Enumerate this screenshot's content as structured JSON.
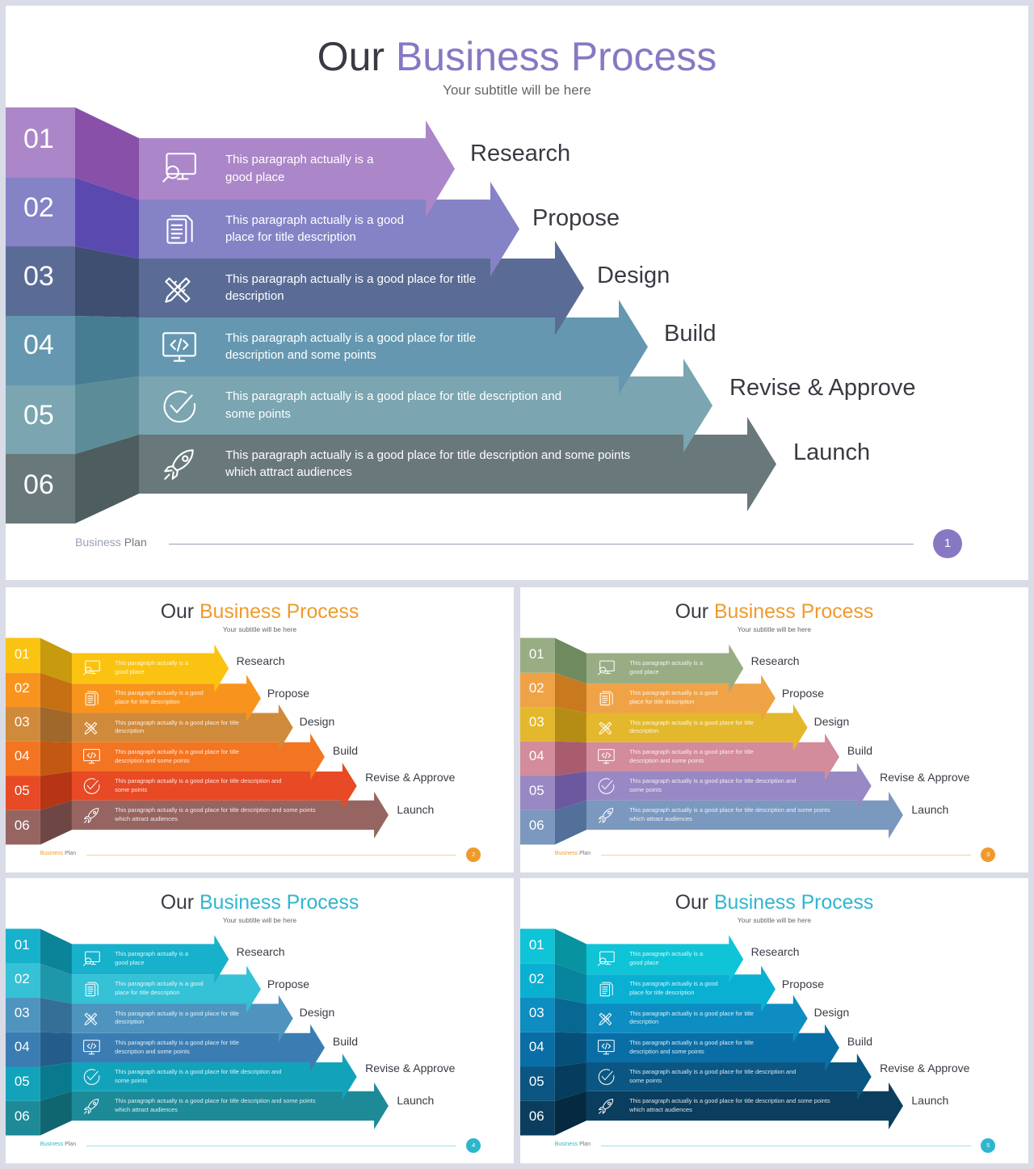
{
  "slides": [
    {
      "title_a": "Our ",
      "title_b": "Business Process",
      "subtitle": "Your subtitle will be here",
      "accent": "#8878c3",
      "footer_a": "Business ",
      "footer_b": "Plan",
      "page": "1",
      "colors": [
        "#ab86c8",
        "#8582c6",
        "#5a6c96",
        "#6598b0",
        "#7aa5b1",
        "#69787b"
      ],
      "side_colors": [
        "#8850a9",
        "#5a4ab0",
        "#3e4f72",
        "#467d93",
        "#5c8c97",
        "#4e5d5f"
      ],
      "steps": [
        {
          "num": "01",
          "label": "Research",
          "desc": "This paragraph actually is a good place",
          "icon": "research-icon"
        },
        {
          "num": "02",
          "label": "Propose",
          "desc": "This paragraph actually is a good place for title description",
          "icon": "document-icon"
        },
        {
          "num": "03",
          "label": "Design",
          "desc": "This paragraph actually is a good place for title description",
          "icon": "pencil-ruler-icon"
        },
        {
          "num": "04",
          "label": "Build",
          "desc": "This paragraph actually is a good place for title description and some points",
          "icon": "code-monitor-icon"
        },
        {
          "num": "05",
          "label": "Revise & Approve",
          "desc": "This paragraph actually is a good place for title description and some points",
          "icon": "check-circle-icon"
        },
        {
          "num": "06",
          "label": "Launch",
          "desc": "This paragraph actually is a good place for title description and some points which attract audiences",
          "icon": "rocket-icon"
        }
      ]
    },
    {
      "title_a": "Our ",
      "title_b": "Business Process",
      "subtitle": "Your subtitle will be here",
      "accent": "#f09a2c",
      "footer_a": "Business ",
      "footer_b": "Plan",
      "page": "2",
      "colors": [
        "#fbc311",
        "#f8941e",
        "#d08a3c",
        "#f37421",
        "#e74a24",
        "#966562"
      ],
      "side_colors": [
        "#c89a0d",
        "#c66f13",
        "#a0682a",
        "#c25812",
        "#b53515",
        "#6e4744"
      ],
      "steps": [
        {
          "num": "01",
          "label": "Research",
          "desc": "This paragraph actually is a good place",
          "icon": "research-icon"
        },
        {
          "num": "02",
          "label": "Propose",
          "desc": "This paragraph actually is a good place for title description",
          "icon": "document-icon"
        },
        {
          "num": "03",
          "label": "Design",
          "desc": "This paragraph actually is a good place for title description",
          "icon": "pencil-ruler-icon"
        },
        {
          "num": "04",
          "label": "Build",
          "desc": "This paragraph actually is a good place for title description and some points",
          "icon": "code-monitor-icon"
        },
        {
          "num": "05",
          "label": "Revise & Approve",
          "desc": "This paragraph actually is a good place for title description and some points",
          "icon": "check-circle-icon"
        },
        {
          "num": "06",
          "label": "Launch",
          "desc": "This paragraph actually is a good place for title description and some points which attract audiences",
          "icon": "rocket-icon"
        }
      ]
    },
    {
      "title_a": "Our ",
      "title_b": "Business Process",
      "subtitle": "Your subtitle will be here",
      "accent": "#f09a2c",
      "footer_a": "Business ",
      "footer_b": "Plan",
      "page": "3",
      "colors": [
        "#98ad84",
        "#f0a247",
        "#e4b82c",
        "#d28c9c",
        "#9888c3",
        "#7b98bf"
      ],
      "side_colors": [
        "#6f8a5e",
        "#c97a1f",
        "#b68d14",
        "#a95c6e",
        "#6b589e",
        "#52709a"
      ],
      "steps": [
        {
          "num": "01",
          "label": "Research",
          "desc": "This paragraph actually is a good place",
          "icon": "research-icon"
        },
        {
          "num": "02",
          "label": "Propose",
          "desc": "This paragraph actually is a good place for title description",
          "icon": "document-icon"
        },
        {
          "num": "03",
          "label": "Design",
          "desc": "This paragraph actually is a good place for title description",
          "icon": "pencil-ruler-icon"
        },
        {
          "num": "04",
          "label": "Build",
          "desc": "This paragraph actually is a good place for title description and some points",
          "icon": "code-monitor-icon"
        },
        {
          "num": "05",
          "label": "Revise & Approve",
          "desc": "This paragraph actually is a good place for title description and some points",
          "icon": "check-circle-icon"
        },
        {
          "num": "06",
          "label": "Launch",
          "desc": "This paragraph actually is a good place for title description and some points which attract audiences",
          "icon": "rocket-icon"
        }
      ]
    },
    {
      "title_a": "Our ",
      "title_b": "Business Process",
      "subtitle": "Your subtitle will be here",
      "accent": "#2fb6cf",
      "footer_a": "Business ",
      "footer_b": "Plan",
      "page": "4",
      "colors": [
        "#17b1cc",
        "#35c1d6",
        "#4e94bf",
        "#3b7db2",
        "#12a3bb",
        "#1e8a98"
      ],
      "side_colors": [
        "#0b8399",
        "#1f97aa",
        "#336f96",
        "#255d8a",
        "#097a8e",
        "#106670"
      ],
      "steps": [
        {
          "num": "01",
          "label": "Research",
          "desc": "This paragraph actually is a good place",
          "icon": "research-icon"
        },
        {
          "num": "02",
          "label": "Propose",
          "desc": "This paragraph actually is a good place for title description",
          "icon": "document-icon"
        },
        {
          "num": "03",
          "label": "Design",
          "desc": "This paragraph actually is a good place for title description",
          "icon": "pencil-ruler-icon"
        },
        {
          "num": "04",
          "label": "Build",
          "desc": "This paragraph actually is a good place for title description and some points",
          "icon": "code-monitor-icon"
        },
        {
          "num": "05",
          "label": "Revise & Approve",
          "desc": "This paragraph actually is a good place for title description and some points",
          "icon": "check-circle-icon"
        },
        {
          "num": "06",
          "label": "Launch",
          "desc": "This paragraph actually is a good place for title description and some points which attract audiences",
          "icon": "rocket-icon"
        }
      ]
    },
    {
      "title_a": "Our ",
      "title_b": "Business Process",
      "subtitle": "Your subtitle will be here",
      "accent": "#2fb6cf",
      "footer_a": "Business ",
      "footer_b": "Plan",
      "page": "5",
      "colors": [
        "#0fc4d6",
        "#0ab0d2",
        "#0d8dc2",
        "#0a6ea6",
        "#0b5682",
        "#0b3e5e"
      ],
      "side_colors": [
        "#07939f",
        "#07849e",
        "#086891",
        "#064f79",
        "#063c5d",
        "#052a40"
      ],
      "steps": [
        {
          "num": "01",
          "label": "Research",
          "desc": "This paragraph actually is a good place",
          "icon": "research-icon"
        },
        {
          "num": "02",
          "label": "Propose",
          "desc": "This paragraph actually is a good place for title description",
          "icon": "document-icon"
        },
        {
          "num": "03",
          "label": "Design",
          "desc": "This paragraph actually is a good place for title description",
          "icon": "pencil-ruler-icon"
        },
        {
          "num": "04",
          "label": "Build",
          "desc": "This paragraph actually is a good place for title description and some points",
          "icon": "code-monitor-icon"
        },
        {
          "num": "05",
          "label": "Revise & Approve",
          "desc": "This paragraph actually is a good place for title description and some points",
          "icon": "check-circle-icon"
        },
        {
          "num": "06",
          "label": "Launch",
          "desc": "This paragraph actually is a good place for title description and some points which attract audiences",
          "icon": "rocket-icon"
        }
      ]
    }
  ]
}
